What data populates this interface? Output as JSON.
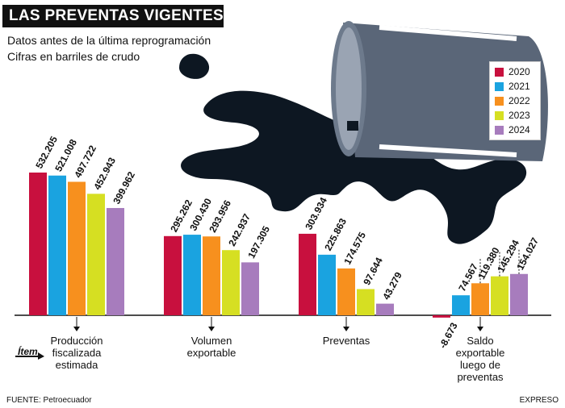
{
  "header": {
    "title": "LAS PREVENTAS VIGENTES",
    "subtitle_1": "Datos antes de la última reprogramación",
    "subtitle_2": "Cifras en barriles de crudo"
  },
  "footer": {
    "source": "FUENTE: Petroecuador",
    "brand": "EXPRESO"
  },
  "item_label": "Ítem",
  "colors": {
    "2020": "#c8103e",
    "2021": "#1aa3e0",
    "2022": "#f7901e",
    "2023": "#d6df22",
    "2024": "#a77cbd",
    "oil": "#0d1722",
    "barrel": "#5a6678"
  },
  "chart_data": {
    "type": "bar",
    "categories": [
      "Producción fiscalizada estimada",
      "Volumen exportable",
      "Preventas",
      "Saldo exportable luego de preventas"
    ],
    "category_lines": [
      [
        "Producción",
        "fiscalizada",
        "estimada"
      ],
      [
        "Volumen",
        "exportable"
      ],
      [
        "Preventas"
      ],
      [
        "Saldo",
        "exportable",
        "luego de",
        "preventas"
      ]
    ],
    "series": [
      {
        "name": "2020",
        "values": [
          532205,
          295262,
          303934,
          -8673
        ],
        "labels": [
          "532.205",
          "295.262",
          "303.934",
          "-8.673"
        ]
      },
      {
        "name": "2021",
        "values": [
          521008,
          300430,
          225863,
          74567
        ],
        "labels": [
          "521.008",
          "300.430",
          "225.863",
          "74.567"
        ]
      },
      {
        "name": "2022",
        "values": [
          497722,
          293956,
          174575,
          119380
        ],
        "labels": [
          "497.722",
          "293.956",
          "174.575",
          "119.380"
        ]
      },
      {
        "name": "2023",
        "values": [
          452943,
          242937,
          97644,
          145294
        ],
        "labels": [
          "452.943",
          "242.937",
          "97.644",
          "145.294"
        ]
      },
      {
        "name": "2024",
        "values": [
          399962,
          197305,
          43279,
          154027
        ],
        "labels": [
          "399.962",
          "197.305",
          "43.279",
          "154.027"
        ]
      }
    ]
  }
}
